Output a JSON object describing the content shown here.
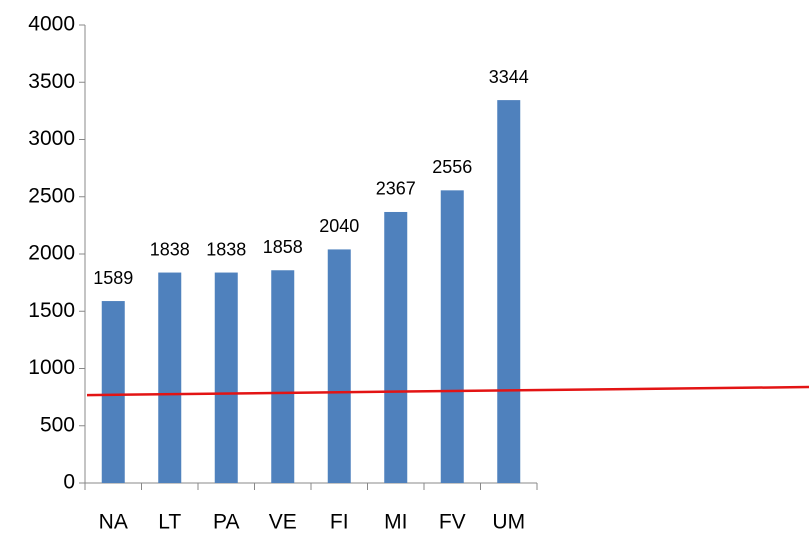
{
  "chart_data": {
    "type": "bar",
    "categories": [
      "NA",
      "LT",
      "PA",
      "VE",
      "FI",
      "MI",
      "FV",
      "UM"
    ],
    "values": [
      1589,
      1838,
      1838,
      1858,
      2040,
      2367,
      2556,
      3344
    ],
    "color": "#4f81bd",
    "ylim": [
      0,
      4000
    ],
    "yticks": [
      0,
      500,
      1000,
      1500,
      2000,
      2500,
      3000,
      3500,
      4000
    ],
    "grid": false,
    "trend_line": {
      "color": "#e31414",
      "start": 768,
      "end": 838
    }
  }
}
